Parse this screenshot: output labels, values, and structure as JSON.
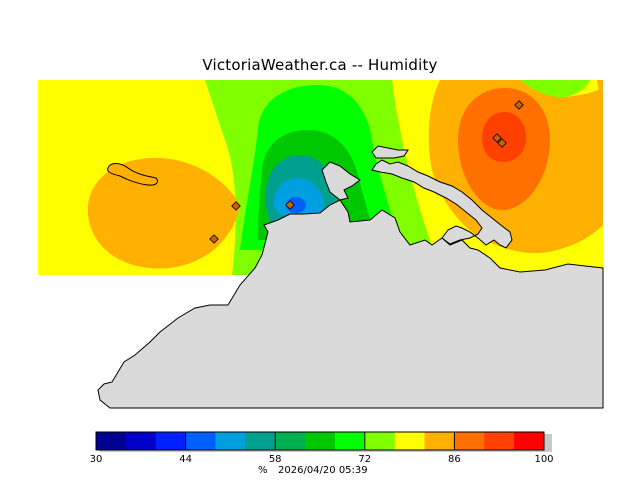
{
  "title": "VictoriaWeather.ca -- Humidity",
  "colorbar": {
    "unit": "%",
    "timestamp": "2026/04/20 05:39",
    "min": 30,
    "max": 100,
    "ticks": [
      {
        "value": 30,
        "label": "30"
      },
      {
        "value": 44,
        "label": "44"
      },
      {
        "value": 58,
        "label": "58"
      },
      {
        "value": 72,
        "label": "72"
      },
      {
        "value": 86,
        "label": "86"
      },
      {
        "value": 100,
        "label": "100"
      }
    ],
    "colors": [
      "#000090",
      "#0000c8",
      "#0020ff",
      "#0060ff",
      "#00a0e0",
      "#00a090",
      "#00b050",
      "#00c800",
      "#00ff00",
      "#80ff00",
      "#ffff00",
      "#ffb000",
      "#ff7000",
      "#ff4000",
      "#ff0000"
    ]
  },
  "legend_colors": {
    "land": "#dadada",
    "coastline": "#000000",
    "station_marker": "#c86400"
  }
}
